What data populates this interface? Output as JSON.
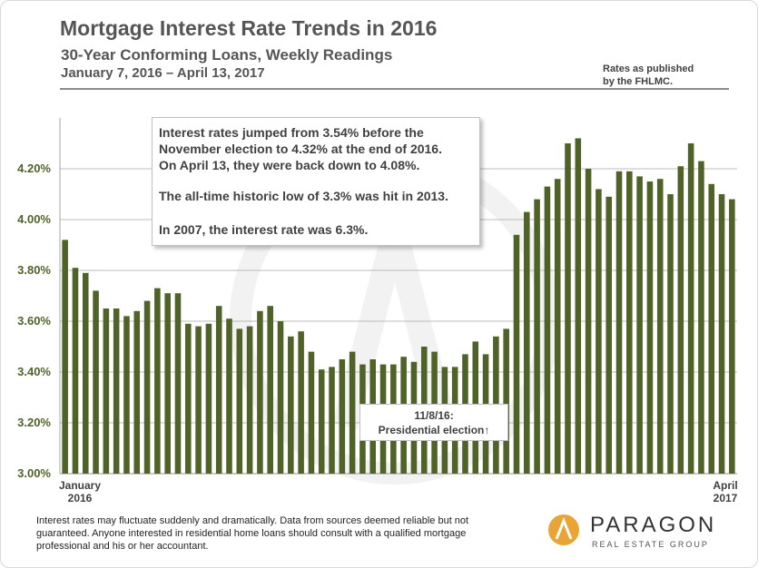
{
  "header": {
    "title": "Mortgage Interest Rate Trends in 2016",
    "subtitle": "30-Year Conforming Loans, Weekly Readings",
    "date_range": "January 7, 2016 – April 13, 2017",
    "source_line1": "Rates as published",
    "source_line2": "by the FHLMC."
  },
  "callout": {
    "line1": "Interest rates jumped from 3.54% before the",
    "line2": "November election to 4.32% at the end of 2016.",
    "line3": "On April 13, they were back down to 4.08%.",
    "line4": "The all-time historic low of 3.3% was hit in 2013.",
    "line5": "In 2007, the interest rate was 6.3%."
  },
  "election_annotation": {
    "line1": "11/8/16:",
    "line2": "Presidential election↑"
  },
  "x_labels": {
    "start_month": "January",
    "start_year": "2016",
    "end_month": "April",
    "end_year": "2017"
  },
  "footer": {
    "disclaimer": "Interest rates may fluctuate suddenly and dramatically. Data from sources deemed reliable but not guaranteed. Anyone interested in residential home loans should consult with a qualified mortgage professional and his or her accountant.",
    "logo_name": "PARAGON",
    "logo_sub": "REAL ESTATE GROUP"
  },
  "colors": {
    "bar": "#4f6228",
    "grid": "#a6a6a6",
    "tick_label": "#4f6228",
    "logo_accent": "#e8a535"
  },
  "chart_data": {
    "type": "bar",
    "title": "Mortgage Interest Rate Trends in 2016",
    "xlabel": "",
    "ylabel": "",
    "ylim": [
      3.0,
      4.4
    ],
    "yticks": [
      3.0,
      3.2,
      3.4,
      3.6,
      3.8,
      4.0,
      4.2
    ],
    "ytick_labels": [
      "3.00%",
      "3.20%",
      "3.40%",
      "3.60%",
      "3.80%",
      "4.00%",
      "4.20%"
    ],
    "grid": true,
    "values": [
      3.92,
      3.81,
      3.79,
      3.72,
      3.65,
      3.65,
      3.62,
      3.64,
      3.68,
      3.73,
      3.71,
      3.71,
      3.59,
      3.58,
      3.59,
      3.66,
      3.61,
      3.57,
      3.58,
      3.64,
      3.66,
      3.6,
      3.54,
      3.56,
      3.48,
      3.41,
      3.42,
      3.45,
      3.48,
      3.43,
      3.45,
      3.43,
      3.43,
      3.46,
      3.44,
      3.5,
      3.48,
      3.42,
      3.42,
      3.47,
      3.52,
      3.47,
      3.54,
      3.57,
      3.94,
      4.03,
      4.08,
      4.13,
      4.16,
      4.3,
      4.32,
      4.2,
      4.12,
      4.09,
      4.19,
      4.19,
      4.17,
      4.15,
      4.16,
      4.1,
      4.21,
      4.3,
      4.23,
      4.14,
      4.1,
      4.08
    ]
  }
}
